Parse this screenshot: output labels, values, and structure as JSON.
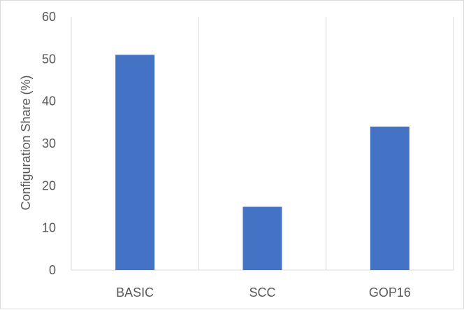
{
  "chart_data": {
    "type": "bar",
    "categories": [
      "BASIC",
      "SCC",
      "GOP16"
    ],
    "values": [
      51,
      15,
      34
    ],
    "title": "",
    "xlabel": "",
    "ylabel": "Configuration Share (%)",
    "ylim": [
      0,
      60
    ],
    "yticks": [
      0,
      10,
      20,
      30,
      40,
      50,
      60
    ],
    "grid": "vertical category separators",
    "legend": "none",
    "colors": {
      "bar": "#4472C4",
      "grid": "#d9d9d9",
      "text": "#595959"
    }
  }
}
